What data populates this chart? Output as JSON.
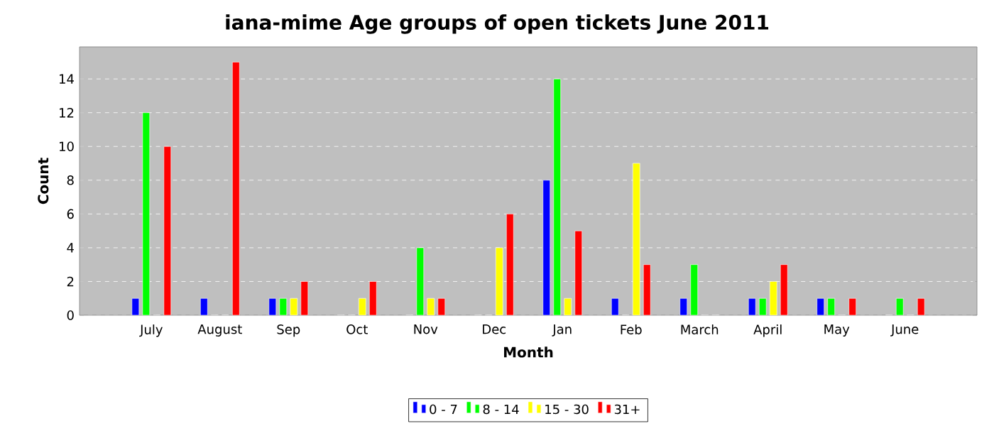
{
  "chart_data": {
    "type": "bar",
    "title": "iana-mime Age groups of open tickets June 2011",
    "xlabel": "Month",
    "ylabel": "Count",
    "categories": [
      "July",
      "August",
      "Sep",
      "Oct",
      "Nov",
      "Dec",
      "Jan",
      "Feb",
      "March",
      "April",
      "May",
      "June"
    ],
    "series": [
      {
        "name": "0 - 7",
        "color": "#0000ff",
        "values": [
          1,
          1,
          1,
          0,
          0,
          0,
          8,
          1,
          1,
          1,
          1,
          0
        ]
      },
      {
        "name": "8 - 14",
        "color": "#00ff00",
        "values": [
          12,
          0,
          1,
          0,
          4,
          0,
          14,
          0,
          3,
          1,
          1,
          1
        ]
      },
      {
        "name": "15 - 30",
        "color": "#ffff00",
        "values": [
          0,
          0,
          1,
          1,
          1,
          4,
          1,
          9,
          0,
          2,
          0,
          0
        ]
      },
      {
        "name": "31+",
        "color": "#ff0000",
        "values": [
          10,
          15,
          2,
          2,
          1,
          6,
          5,
          3,
          0,
          3,
          1,
          1
        ]
      }
    ],
    "ylim": [
      0,
      15.9
    ],
    "yticks": [
      0,
      2,
      4,
      6,
      8,
      10,
      12,
      14
    ],
    "grid": "y",
    "legend": "bottom"
  }
}
